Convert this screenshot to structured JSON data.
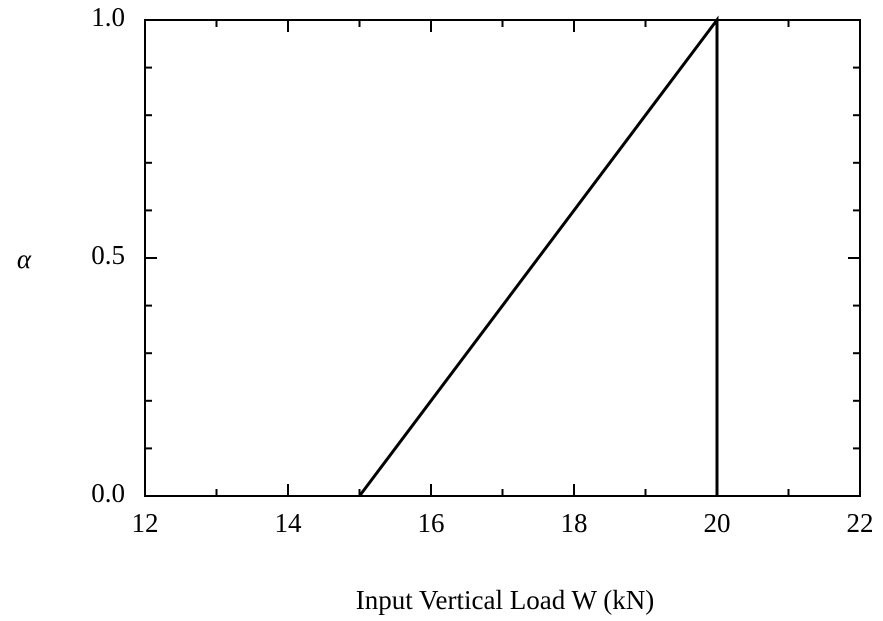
{
  "chart_data": {
    "type": "line",
    "xlabel": "Input Vertical Load W (kN)",
    "ylabel": "α",
    "series": [
      {
        "x": [
          15,
          20,
          20
        ],
        "values": [
          0,
          1,
          0
        ],
        "color": "#000000"
      }
    ],
    "xlim": [
      12,
      22
    ],
    "xticks": [
      12,
      14,
      16,
      18,
      20,
      22
    ],
    "xminorticks": [
      13,
      15,
      17,
      19,
      21
    ],
    "ylim": [
      0,
      1
    ],
    "yticks": [
      {
        "value": 0,
        "label": "0.0"
      },
      {
        "value": 0.5,
        "label": "0.5"
      },
      {
        "value": 1,
        "label": "1.0"
      }
    ],
    "yminorticks": [
      0.1,
      0.2,
      0.3,
      0.4,
      0.6,
      0.7,
      0.8,
      0.9
    ],
    "grid": false
  }
}
